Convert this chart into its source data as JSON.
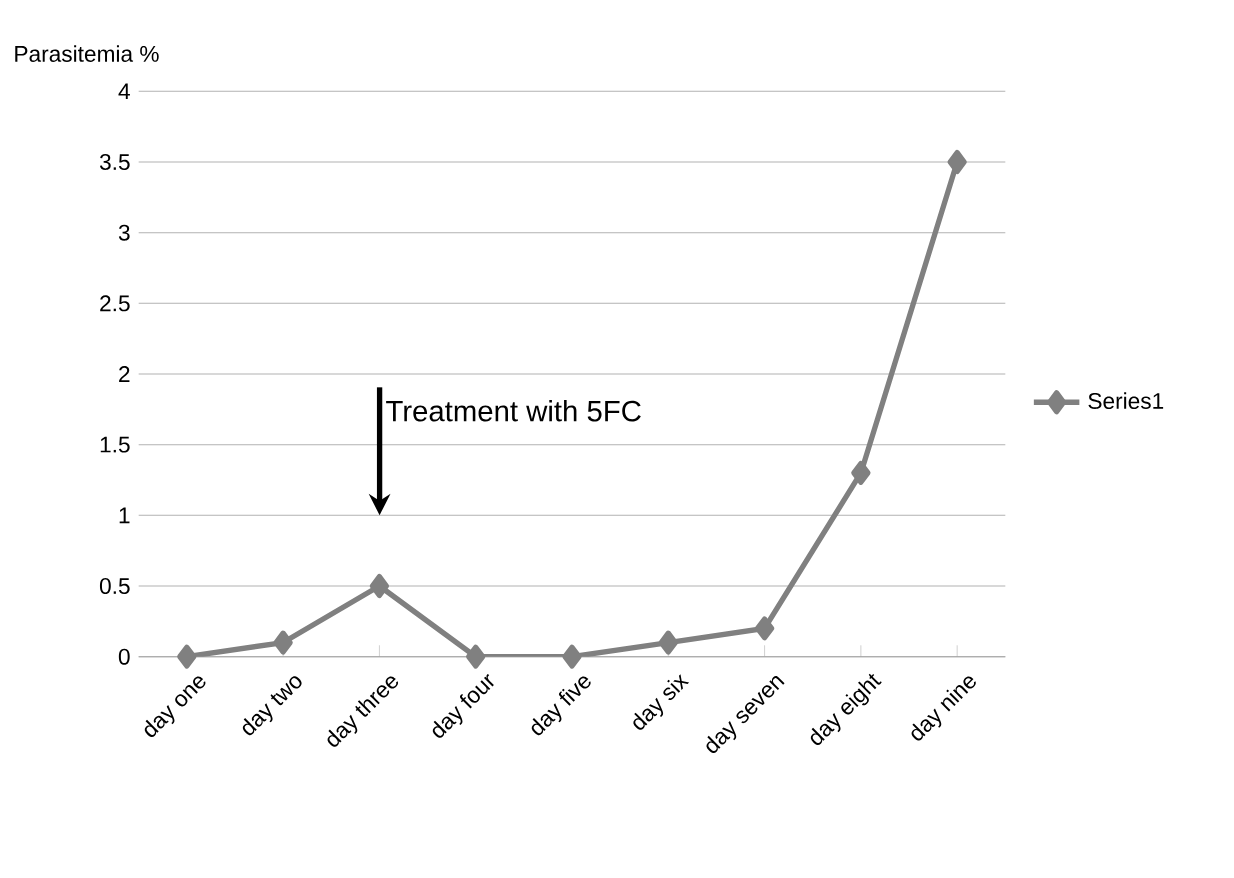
{
  "chart_data": {
    "type": "line",
    "ylabel": "Parasitemia %",
    "categories": [
      "day one",
      "day two",
      "day three",
      "day four",
      "day five",
      "day six",
      "day seven",
      "day eight",
      "day nine"
    ],
    "series": [
      {
        "name": "Series1",
        "color": "#808080",
        "values": [
          0,
          0.1,
          0.5,
          0,
          0,
          0.1,
          0.2,
          1.3,
          3.5
        ]
      }
    ],
    "ylim": [
      0,
      4
    ],
    "yticks": [
      0,
      0.5,
      1,
      1.5,
      2,
      2.5,
      3,
      3.5,
      4
    ],
    "grid": "y",
    "legend": "right",
    "marker": "diamond",
    "line_style": "solid",
    "annotations": [
      "Treatment with 5FC"
    ]
  }
}
